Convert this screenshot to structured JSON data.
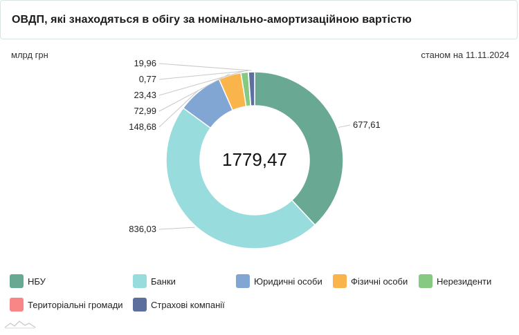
{
  "header": {
    "title": "ОВДП, які знаходяться в обігу за номінально-амортизаційною вартістю"
  },
  "unit_label": "млрд грн",
  "as_of_label": "станом на 11.11.2024",
  "chart_data": {
    "type": "pie",
    "style": "donut",
    "title": "ОВДП, які знаходяться в обігу за номінально-амортизаційною вартістю",
    "unit": "млрд грн",
    "total_label": "1779,47",
    "total": 1779.47,
    "series": [
      {
        "name": "НБУ",
        "value": 677.61,
        "label": "677,61",
        "color": "#69a892"
      },
      {
        "name": "Банки",
        "value": 836.03,
        "label": "836,03",
        "color": "#98dcdd"
      },
      {
        "name": "Юридичні особи",
        "value": 148.68,
        "label": "148,68",
        "color": "#82a6d4"
      },
      {
        "name": "Фізичні особи",
        "value": 72.99,
        "label": "72,99",
        "color": "#f9b54c"
      },
      {
        "name": "Нерезиденти",
        "value": 23.43,
        "label": "23,43",
        "color": "#86c983"
      },
      {
        "name": "Територіальні громади",
        "value": 0.77,
        "label": "0,77",
        "color": "#f98686"
      },
      {
        "name": "Страхові компанії",
        "value": 19.96,
        "label": "19,96",
        "color": "#5c6f9d"
      }
    ]
  },
  "legend": {
    "rows": [
      [
        {
          "label": "НБУ",
          "color": "#69a892"
        },
        {
          "label": "Банки",
          "color": "#98dcdd"
        },
        {
          "label": "Юридичні особи",
          "color": "#82a6d4"
        },
        {
          "label": "Фізичні особи",
          "color": "#f9b54c"
        },
        {
          "label": "Нерезиденти",
          "color": "#86c983"
        }
      ],
      [
        {
          "label": "Територіальні громади",
          "color": "#f98686"
        },
        {
          "label": "Страхові компанії",
          "color": "#5c6f9d"
        }
      ]
    ]
  },
  "watermark_icon": "chart-logo-icon"
}
